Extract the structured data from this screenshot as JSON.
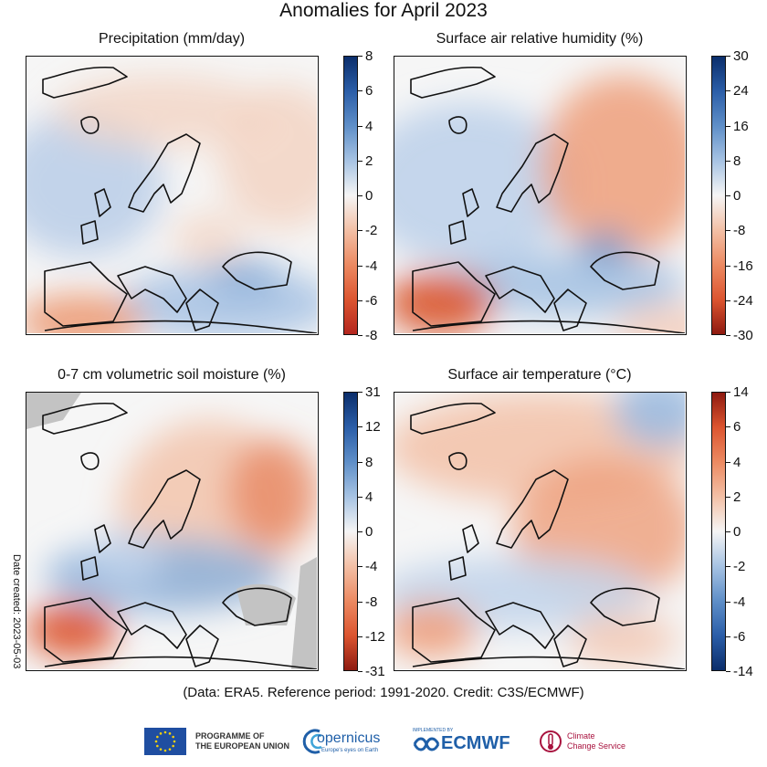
{
  "title": "Anomalies for April 2023",
  "panels": [
    {
      "id": "precipitation",
      "title": "Precipitation (mm/day)",
      "colorbar": {
        "ticks": [
          "8",
          "6",
          "4",
          "2",
          "0",
          "-2",
          "-4",
          "-6",
          "-8"
        ],
        "colors": [
          "#0b2e6b",
          "#2b5ea8",
          "#5f8fc8",
          "#a7c3e3",
          "#f5f5f5",
          "#f3c0a6",
          "#ec8a62",
          "#dc5530",
          "#b3261e"
        ]
      },
      "masked_gray": false
    },
    {
      "id": "humidity",
      "title": "Surface air relative humidity (%)",
      "colorbar": {
        "ticks": [
          "30",
          "24",
          "16",
          "8",
          "0",
          "-8",
          "-16",
          "-24",
          "-30"
        ],
        "colors": [
          "#0b2e6b",
          "#2b5ea8",
          "#5f8fc8",
          "#a7c3e3",
          "#f5f5f5",
          "#f3c0a6",
          "#ec8a62",
          "#dc5530",
          "#8e1a10"
        ]
      },
      "masked_gray": false
    },
    {
      "id": "soil-moisture",
      "title": "0-7 cm volumetric soil moisture (%)",
      "colorbar": {
        "ticks": [
          "31",
          "12",
          "8",
          "4",
          "0",
          "-4",
          "-8",
          "-12",
          "-31"
        ],
        "colors": [
          "#0b2e6b",
          "#2b5ea8",
          "#5f8fc8",
          "#a7c3e3",
          "#f5f5f5",
          "#f3c0a6",
          "#ec8a62",
          "#dc5530",
          "#8e1a10"
        ]
      },
      "masked_gray": true
    },
    {
      "id": "temperature",
      "title": "Surface air temperature (°C)",
      "colorbar": {
        "ticks": [
          "14",
          "6",
          "4",
          "2",
          "0",
          "-2",
          "-4",
          "-6",
          "-14"
        ],
        "colors": [
          "#8e1a10",
          "#dc5530",
          "#ec8a62",
          "#f3c0a6",
          "#f5f5f5",
          "#a7c3e3",
          "#5f8fc8",
          "#2b5ea8",
          "#0b2e6b"
        ]
      },
      "masked_gray": false
    }
  ],
  "credits": "(Data: ERA5.  Reference period: 1991-2020.  Credit: C3S/ECMWF)",
  "date_created": "Date created: 2023-05-03",
  "logos": {
    "eu": "PROGRAMME OF\nTHE EUROPEAN UNION",
    "copernicus": "opernicus",
    "copernicus_tagline": "Europe's eyes on Earth",
    "ecmwf_small": "IMPLEMENTED BY",
    "ecmwf": "ECMWF",
    "climate": "Climate\nChange Service"
  }
}
